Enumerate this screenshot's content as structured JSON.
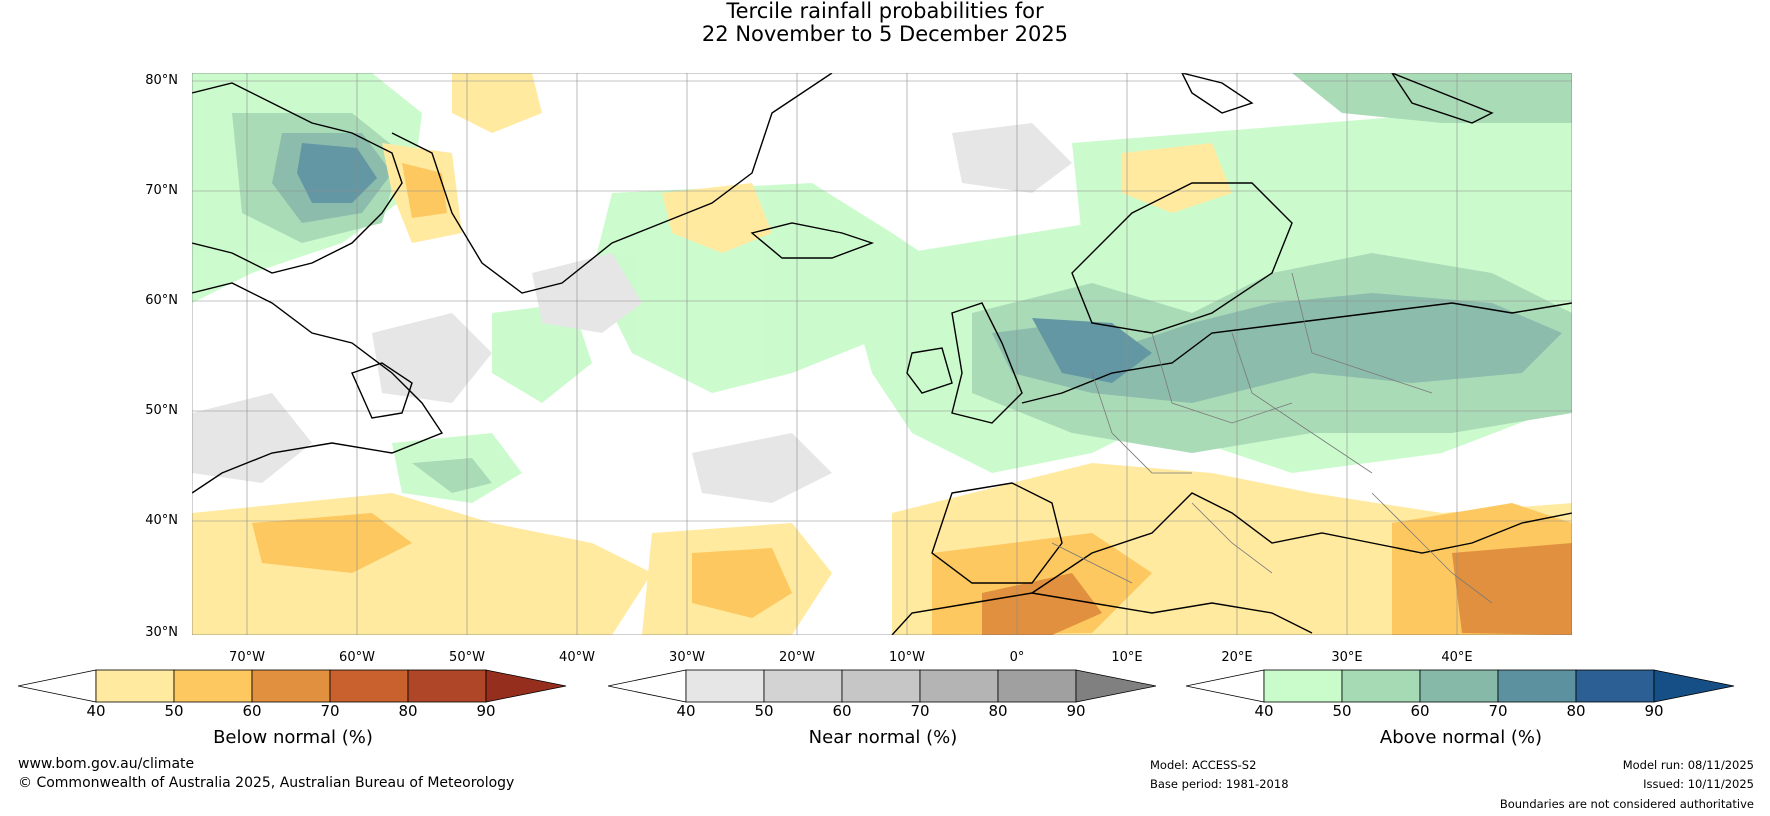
{
  "title": {
    "line1": "Tercile rainfall probabilities for",
    "line2": "22 November to 5 December 2025"
  },
  "axes": {
    "lat_labels": [
      "80°N",
      "70°N",
      "60°N",
      "50°N",
      "40°N",
      "30°N"
    ],
    "lon_labels": [
      "70°W",
      "60°W",
      "50°W",
      "40°W",
      "30°W",
      "20°W",
      "10°W",
      "0°",
      "10°E",
      "20°E",
      "30°E",
      "40°E"
    ]
  },
  "legends": [
    {
      "caption": "Below normal (%)",
      "ticks": [
        "40",
        "50",
        "60",
        "70",
        "80",
        "90"
      ],
      "colors": [
        "#ffffff",
        "#ffeaa0",
        "#fdc85f",
        "#e0903e",
        "#c8612e",
        "#ae4627",
        "#962e1e"
      ]
    },
    {
      "caption": "Near normal (%)",
      "ticks": [
        "40",
        "50",
        "60",
        "70",
        "80",
        "90"
      ],
      "colors": [
        "#ffffff",
        "#e6e6e6",
        "#d3d3d3",
        "#c6c6c6",
        "#b4b4b4",
        "#a0a0a0",
        "#808080"
      ]
    },
    {
      "caption": "Above normal (%)",
      "ticks": [
        "40",
        "50",
        "60",
        "70",
        "80",
        "90"
      ],
      "colors": [
        "#ffffff",
        "#c9fbcb",
        "#a6dab4",
        "#86b9a8",
        "#5c92a0",
        "#2c5f94",
        "#154f86"
      ]
    }
  ],
  "footer": {
    "website": "www.bom.gov.au/climate",
    "copyright": "© Commonwealth of Australia 2025, Australian Bureau of Meteorology",
    "model": "Model: ACCESS-S2",
    "base_period": "Base period: 1981-2018",
    "model_run": "Model run: 08/11/2025",
    "issued": "Issued: 10/11/2025",
    "disclaimer": "Boundaries are not considered authoritative"
  }
}
